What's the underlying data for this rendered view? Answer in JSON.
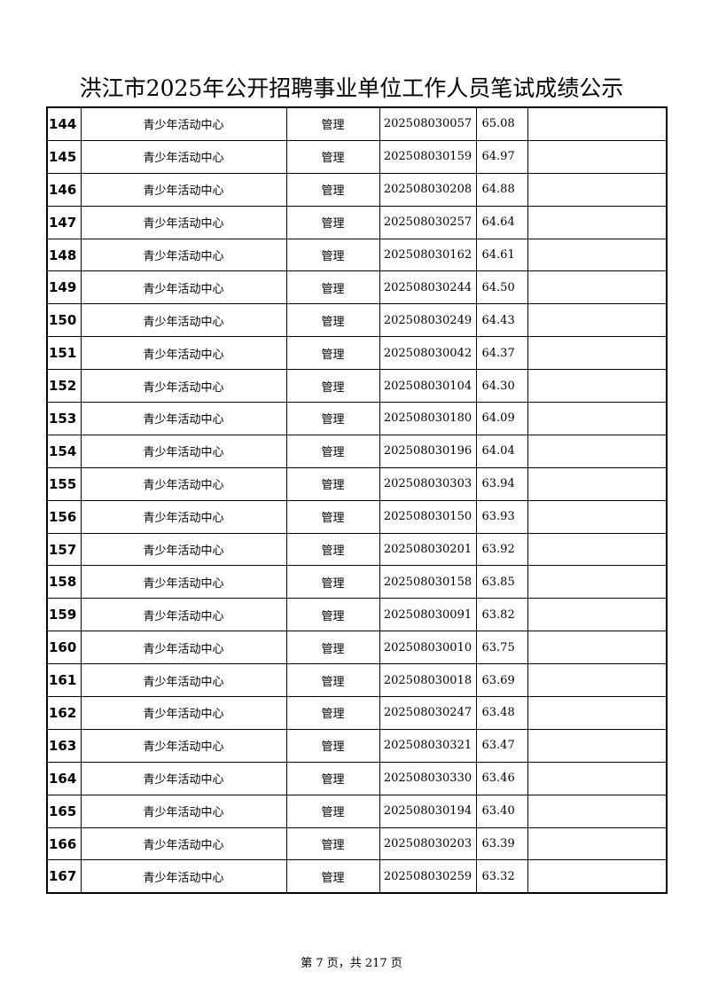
{
  "title": "洪江市2025年公开招聘事业单位工作人员笔试成绩公示",
  "rows": [
    {
      "no": "144",
      "unit": "青少年活动中心",
      "post": "管理",
      "ticket": "202508030057",
      "score": "65.08",
      "remark": ""
    },
    {
      "no": "145",
      "unit": "青少年活动中心",
      "post": "管理",
      "ticket": "202508030159",
      "score": "64.97",
      "remark": ""
    },
    {
      "no": "146",
      "unit": "青少年活动中心",
      "post": "管理",
      "ticket": "202508030208",
      "score": "64.88",
      "remark": ""
    },
    {
      "no": "147",
      "unit": "青少年活动中心",
      "post": "管理",
      "ticket": "202508030257",
      "score": "64.64",
      "remark": ""
    },
    {
      "no": "148",
      "unit": "青少年活动中心",
      "post": "管理",
      "ticket": "202508030162",
      "score": "64.61",
      "remark": ""
    },
    {
      "no": "149",
      "unit": "青少年活动中心",
      "post": "管理",
      "ticket": "202508030244",
      "score": "64.50",
      "remark": ""
    },
    {
      "no": "150",
      "unit": "青少年活动中心",
      "post": "管理",
      "ticket": "202508030249",
      "score": "64.43",
      "remark": ""
    },
    {
      "no": "151",
      "unit": "青少年活动中心",
      "post": "管理",
      "ticket": "202508030042",
      "score": "64.37",
      "remark": ""
    },
    {
      "no": "152",
      "unit": "青少年活动中心",
      "post": "管理",
      "ticket": "202508030104",
      "score": "64.30",
      "remark": ""
    },
    {
      "no": "153",
      "unit": "青少年活动中心",
      "post": "管理",
      "ticket": "202508030180",
      "score": "64.09",
      "remark": ""
    },
    {
      "no": "154",
      "unit": "青少年活动中心",
      "post": "管理",
      "ticket": "202508030196",
      "score": "64.04",
      "remark": ""
    },
    {
      "no": "155",
      "unit": "青少年活动中心",
      "post": "管理",
      "ticket": "202508030303",
      "score": "63.94",
      "remark": ""
    },
    {
      "no": "156",
      "unit": "青少年活动中心",
      "post": "管理",
      "ticket": "202508030150",
      "score": "63.93",
      "remark": ""
    },
    {
      "no": "157",
      "unit": "青少年活动中心",
      "post": "管理",
      "ticket": "202508030201",
      "score": "63.92",
      "remark": ""
    },
    {
      "no": "158",
      "unit": "青少年活动中心",
      "post": "管理",
      "ticket": "202508030158",
      "score": "63.85",
      "remark": ""
    },
    {
      "no": "159",
      "unit": "青少年活动中心",
      "post": "管理",
      "ticket": "202508030091",
      "score": "63.82",
      "remark": ""
    },
    {
      "no": "160",
      "unit": "青少年活动中心",
      "post": "管理",
      "ticket": "202508030010",
      "score": "63.75",
      "remark": ""
    },
    {
      "no": "161",
      "unit": "青少年活动中心",
      "post": "管理",
      "ticket": "202508030018",
      "score": "63.69",
      "remark": ""
    },
    {
      "no": "162",
      "unit": "青少年活动中心",
      "post": "管理",
      "ticket": "202508030247",
      "score": "63.48",
      "remark": ""
    },
    {
      "no": "163",
      "unit": "青少年活动中心",
      "post": "管理",
      "ticket": "202508030321",
      "score": "63.47",
      "remark": ""
    },
    {
      "no": "164",
      "unit": "青少年活动中心",
      "post": "管理",
      "ticket": "202508030330",
      "score": "63.46",
      "remark": ""
    },
    {
      "no": "165",
      "unit": "青少年活动中心",
      "post": "管理",
      "ticket": "202508030194",
      "score": "63.40",
      "remark": ""
    },
    {
      "no": "166",
      "unit": "青少年活动中心",
      "post": "管理",
      "ticket": "202508030203",
      "score": "63.39",
      "remark": ""
    },
    {
      "no": "167",
      "unit": "青少年活动中心",
      "post": "管理",
      "ticket": "202508030259",
      "score": "63.32",
      "remark": ""
    }
  ],
  "footer": "第 7 页，共 217 页"
}
